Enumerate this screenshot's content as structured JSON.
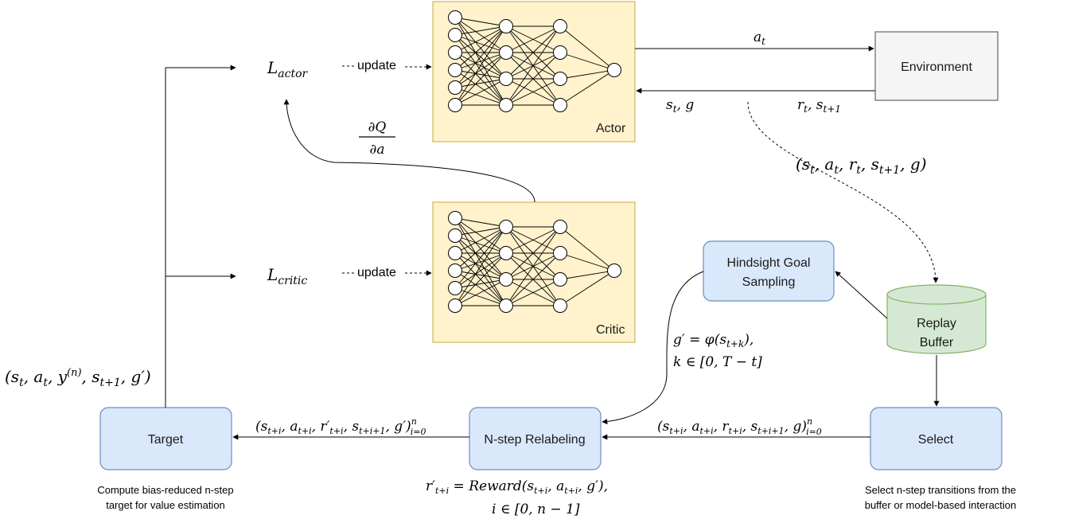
{
  "nodes": {
    "actor": {
      "label": "Actor"
    },
    "critic": {
      "label": "Critic"
    },
    "environment": {
      "label": "Environment"
    },
    "hindsight": {
      "line1": "Hindsight Goal",
      "line2": "Sampling"
    },
    "replay": {
      "line1": "Replay",
      "line2": "Buffer"
    },
    "select": {
      "label": "Select"
    },
    "nstep": {
      "label": "N-step Relabeling"
    },
    "target": {
      "label": "Target"
    }
  },
  "losses": {
    "actor": "L_actor",
    "critic": "L_critic"
  },
  "edge_labels": {
    "update_actor": "update",
    "update_critic": "update",
    "action": "a_t",
    "state_goal": "s_t, g",
    "reward_next": "r_t, s_t+1",
    "dq_num": "∂Q",
    "dq_den": "∂a",
    "transition": "(s_t, a_t, r_t, s_t+1, g)",
    "goal_line1": "g′ = φ(s_t+k),",
    "goal_line2": "k ∈ [0, T − t]",
    "select_to_nstep": "(s_t+i, a_t+i, r_t+i, s_t+i+1, g)_i=0^n",
    "nstep_to_target": "(s_t+i, a_t+i, r′_t+i, s_t+i+1, g′)_i=0^n",
    "target_tuple": "(s_t, a_t, y^(n), s_t+1, g′)",
    "reward_line1": "r′_t+i = Reward(s_t+i, a_t+i, g′),",
    "reward_line2": "i ∈ [0, n − 1]"
  },
  "captions": {
    "target_line1": "Compute bias-reduced n-step",
    "target_line2": "target for value estimation",
    "select_line1": "Select n-step transitions from the",
    "select_line2": "buffer or model-based interaction"
  },
  "colors": {
    "network_fill": "#fff2cc",
    "network_stroke": "#d6b656",
    "blue_fill": "#dae8fc",
    "blue_stroke": "#6c8ebf",
    "green_fill": "#d5e8d4",
    "green_stroke": "#82b366",
    "env_fill": "#f5f5f5",
    "env_stroke": "#666666"
  }
}
